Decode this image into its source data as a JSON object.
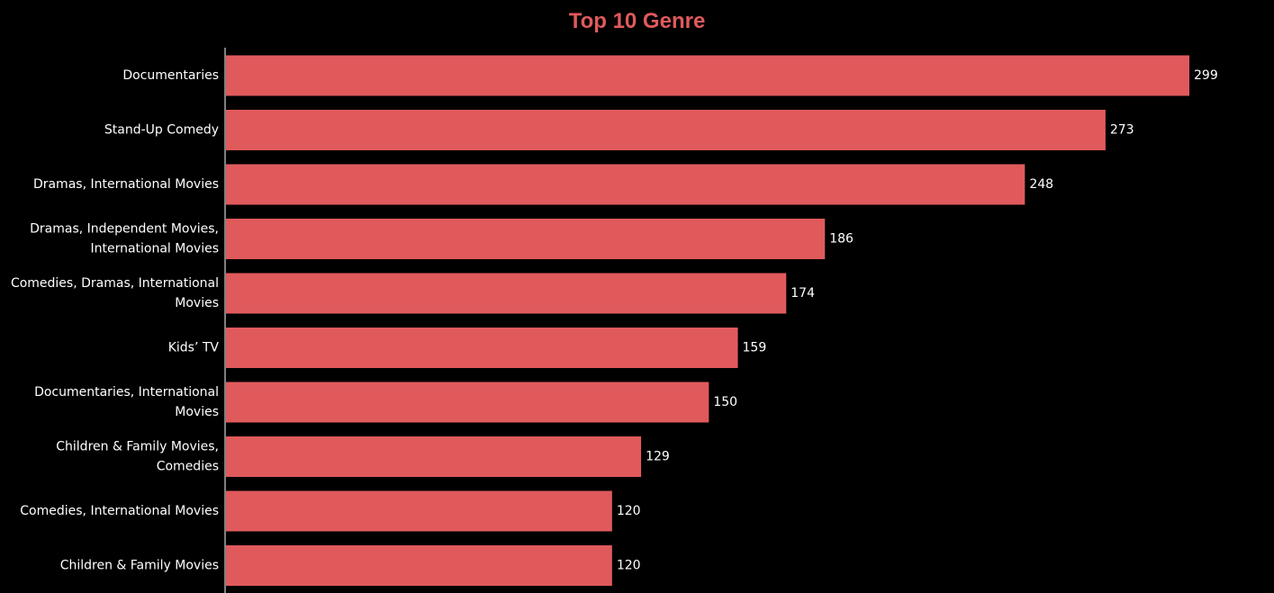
{
  "chart_data": {
    "type": "bar",
    "orientation": "horizontal",
    "title": "Top 10 Genre",
    "xlabel": "",
    "ylabel": "",
    "categories": [
      "Documentaries",
      "Stand-Up Comedy",
      "Dramas, International Movies",
      "Dramas, Independent Movies, International Movies",
      "Comedies, Dramas, International Movies",
      "Kids’ TV",
      "Documentaries, International Movies",
      "Children & Family Movies, Comedies",
      "Comedies, International Movies",
      "Children & Family Movies"
    ],
    "category_label_lines": [
      [
        "Documentaries"
      ],
      [
        "Stand-Up Comedy"
      ],
      [
        "Dramas, International Movies"
      ],
      [
        "Dramas, Independent Movies,",
        "International Movies"
      ],
      [
        "Comedies, Dramas, International",
        "Movies"
      ],
      [
        "Kids’ TV"
      ],
      [
        "Documentaries, International",
        "Movies"
      ],
      [
        "Children & Family Movies,",
        "Comedies"
      ],
      [
        "Comedies, International Movies"
      ],
      [
        "Children & Family Movies"
      ]
    ],
    "values": [
      299,
      273,
      248,
      186,
      174,
      159,
      150,
      129,
      120,
      120
    ],
    "xlim": [
      0,
      299
    ],
    "data_labels": true,
    "grid": false,
    "legend": "none",
    "bar_color": "#e05a5c",
    "title_color": "#e05a5c",
    "background_color": "#000000",
    "text_color": "#ffffff",
    "axis_color": "#ffffff"
  }
}
